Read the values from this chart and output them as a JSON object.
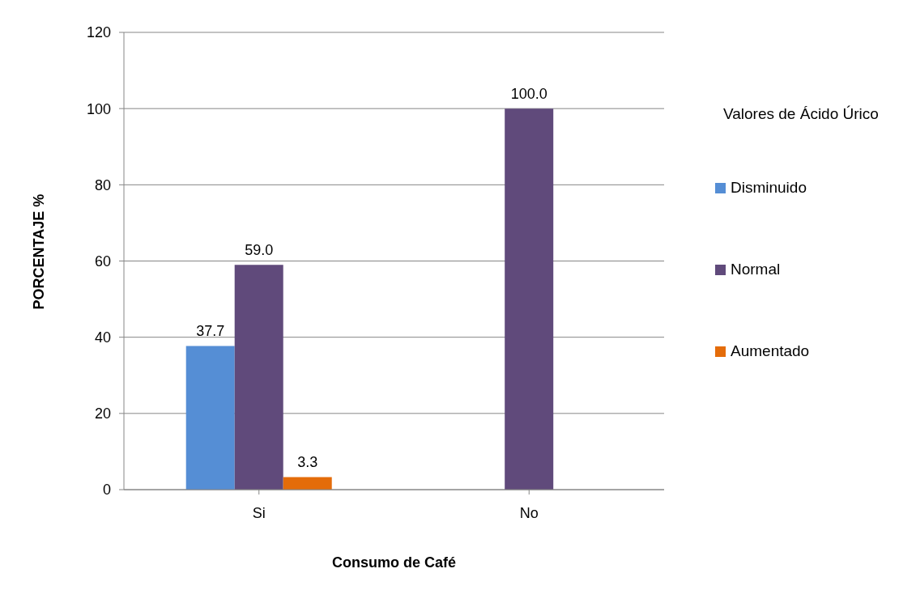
{
  "chart_data": {
    "type": "bar",
    "xlabel": "Consumo de Café",
    "ylabel": "PORCENTAJE %",
    "legend_title": "Valores de Ácido Úrico",
    "categories": [
      "Si",
      "No"
    ],
    "series": [
      {
        "name": "Disminuido",
        "color": "#558ed5",
        "values": [
          37.7,
          null
        ],
        "value_labels": [
          "37.7",
          null
        ]
      },
      {
        "name": "Normal",
        "color": "#604a7b",
        "values": [
          59.0,
          100.0
        ],
        "value_labels": [
          "59.0",
          "100.0"
        ]
      },
      {
        "name": "Aumentado",
        "color": "#e46c0a",
        "values": [
          3.3,
          null
        ],
        "value_labels": [
          "3.3",
          null
        ]
      }
    ],
    "ylim": [
      0,
      120
    ],
    "yticks": [
      0,
      20,
      40,
      60,
      80,
      100,
      120
    ],
    "grid": "y",
    "legend": "right"
  }
}
